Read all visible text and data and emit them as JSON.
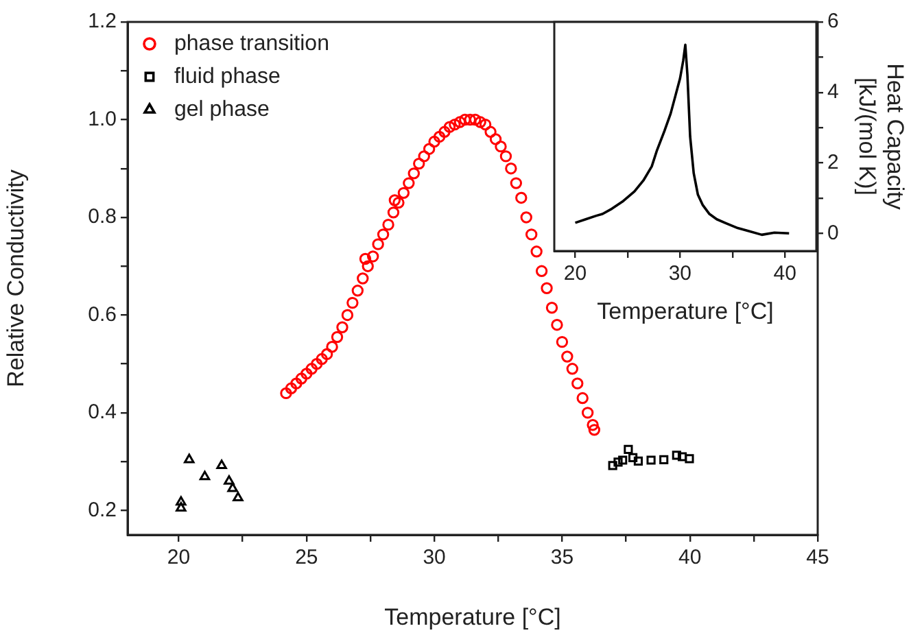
{
  "chart_data": [
    {
      "type": "scatter",
      "xlabel": "Temperature [°C]",
      "ylabel": "Relative Conductivity",
      "xlim": [
        18,
        45
      ],
      "ylim": [
        0.15,
        1.2
      ],
      "xticks": [
        20,
        {
          "value": 22.5,
          "label": null
        },
        25,
        {
          "value": 27.5,
          "label": null
        },
        30,
        {
          "value": 32.5,
          "label": null
        },
        35,
        {
          "value": 37.5,
          "label": null
        },
        40,
        {
          "value": 42.5,
          "label": null
        },
        45
      ],
      "yticks": [
        0.2,
        {
          "value": 0.3,
          "label": null
        },
        0.4,
        {
          "value": 0.5,
          "label": null
        },
        0.6,
        {
          "value": 0.7,
          "label": null
        },
        0.8,
        {
          "value": 0.9,
          "label": null
        },
        {
          "value": 1.0,
          "label": "1.0"
        },
        {
          "value": 1.1,
          "label": null
        },
        1.2
      ],
      "legend": "top left",
      "grid": false,
      "series": [
        {
          "name": "phase transition",
          "color": "#ff0000",
          "marker": "circle",
          "x": [
            24.2,
            24.4,
            24.6,
            24.8,
            25.0,
            25.2,
            25.4,
            25.6,
            25.8,
            26.0,
            26.2,
            26.4,
            26.6,
            26.8,
            27.0,
            27.2,
            27.3,
            27.4,
            27.6,
            27.8,
            28.0,
            28.2,
            28.4,
            28.45,
            28.6,
            28.8,
            29.0,
            29.2,
            29.4,
            29.6,
            29.8,
            30.0,
            30.2,
            30.4,
            30.6,
            30.8,
            31.0,
            31.2,
            31.4,
            31.6,
            31.8,
            32.0,
            32.2,
            32.4,
            32.6,
            32.8,
            33.0,
            33.2,
            33.4,
            33.6,
            33.8,
            34.0,
            34.2,
            34.4,
            34.6,
            34.8,
            35.0,
            35.2,
            35.4,
            35.6,
            35.8,
            36.0,
            36.2,
            36.26
          ],
          "values": [
            0.44,
            0.45,
            0.46,
            0.47,
            0.48,
            0.49,
            0.5,
            0.51,
            0.52,
            0.535,
            0.555,
            0.575,
            0.6,
            0.625,
            0.65,
            0.675,
            0.715,
            0.7,
            0.72,
            0.745,
            0.765,
            0.785,
            0.81,
            0.835,
            0.83,
            0.85,
            0.87,
            0.89,
            0.91,
            0.925,
            0.94,
            0.955,
            0.965,
            0.975,
            0.985,
            0.99,
            0.995,
            1.0,
            1.0,
            1.0,
            0.995,
            0.99,
            0.975,
            0.96,
            0.945,
            0.925,
            0.9,
            0.87,
            0.84,
            0.8,
            0.765,
            0.73,
            0.69,
            0.655,
            0.615,
            0.58,
            0.545,
            0.515,
            0.49,
            0.46,
            0.43,
            0.4,
            0.375,
            0.365
          ]
        },
        {
          "name": "fluid phase",
          "color": "#000000",
          "marker": "square",
          "x": [
            36.98,
            37.19,
            37.37,
            37.59,
            37.77,
            37.98,
            38.48,
            38.98,
            39.48,
            39.7,
            39.98
          ],
          "values": [
            0.292,
            0.299,
            0.303,
            0.325,
            0.308,
            0.301,
            0.303,
            0.304,
            0.313,
            0.31,
            0.306
          ]
        },
        {
          "name": "gel phase",
          "color": "#000000",
          "marker": "triangle",
          "x": [
            20.09,
            20.09,
            20.41,
            21.02,
            21.68,
            21.97,
            22.11,
            22.32
          ],
          "values": [
            0.205,
            0.217,
            0.304,
            0.269,
            0.292,
            0.26,
            0.245,
            0.226
          ]
        }
      ]
    },
    {
      "type": "line",
      "xlabel": "Temperature [°C]",
      "y2label": "Heat Capacity\n[kJ/(mol K)]",
      "xlim": [
        18,
        43
      ],
      "y2lim": [
        -0.5,
        6
      ],
      "xticks": [
        20,
        {
          "value": 25,
          "label": null
        },
        30,
        {
          "value": 35,
          "label": null
        },
        40
      ],
      "y2ticks": [
        0,
        {
          "value": 1,
          "label": null
        },
        2,
        {
          "value": 3,
          "label": null
        },
        4,
        {
          "value": 5,
          "label": null
        },
        6
      ],
      "grid": false,
      "legend": false,
      "marker": "none",
      "line_style": "solid",
      "series": [
        {
          "color": "#000000",
          "axis": "y2",
          "x": [
            20,
            21,
            22,
            22.6,
            23.5,
            24.5,
            25.65,
            26.5,
            27.3,
            27.8,
            28.5,
            29.1,
            29.57,
            30,
            30.3,
            30.5,
            30.7,
            30.96,
            31.3,
            31.7,
            32.17,
            32.8,
            33.5,
            34.35,
            35.5,
            36.5,
            37.8,
            39,
            40.4
          ],
          "values": [
            0.3,
            0.4,
            0.5,
            0.55,
            0.7,
            0.9,
            1.19,
            1.5,
            1.9,
            2.36,
            2.9,
            3.4,
            3.92,
            4.4,
            4.9,
            5.35,
            4.5,
            2.75,
            1.71,
            1.1,
            0.8,
            0.55,
            0.4,
            0.29,
            0.15,
            0.07,
            -0.04,
            0.02,
            0
          ]
        }
      ]
    }
  ]
}
